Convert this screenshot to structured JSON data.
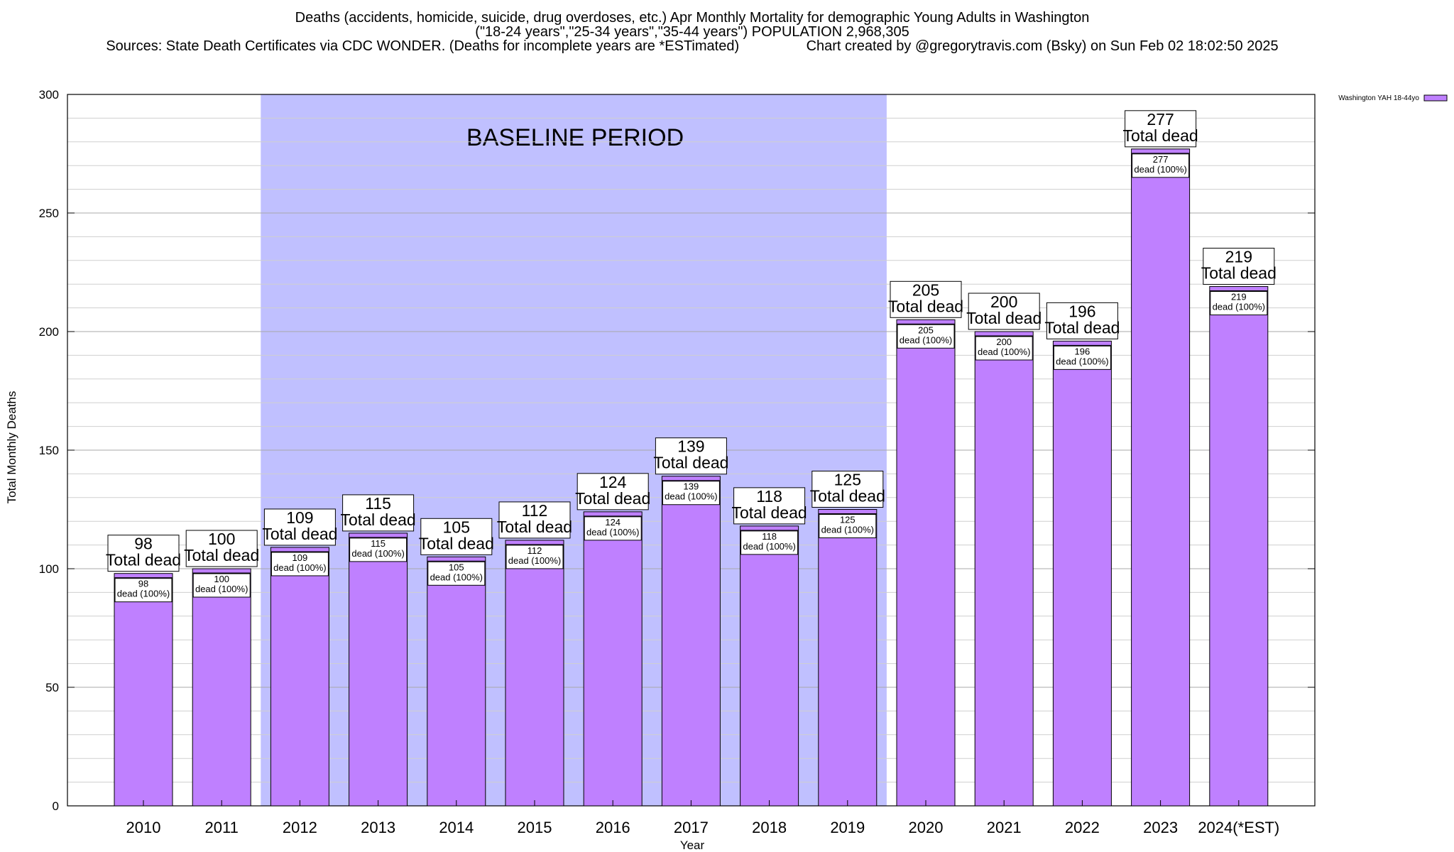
{
  "chart_data": {
    "type": "bar",
    "title_lines": [
      "Deaths (accidents, homicide, suicide, drug overdoses, etc.) Apr Monthly Mortality for demographic Young Adults in Washington",
      "(\"18-24 years\",\"25-34 years\",\"35-44 years\") POPULATION 2,968,305",
      "Sources: State Death Certificates via CDC WONDER. (Deaths for incomplete years are *ESTimated)                 Chart created by @gregorytravis.com (Bsky) on Sun Feb 02 18:02:50 2025"
    ],
    "xlabel": "Year",
    "ylabel": "Total Monthly Deaths",
    "ylim": [
      0,
      300
    ],
    "yticks": [
      0,
      50,
      100,
      150,
      200,
      250,
      300
    ],
    "grid": true,
    "categories": [
      "2010",
      "2011",
      "2012",
      "2013",
      "2014",
      "2015",
      "2016",
      "2017",
      "2018",
      "2019",
      "2020",
      "2021",
      "2022",
      "2023",
      "2024(*EST)"
    ],
    "series": [
      {
        "name": "Washington YAH 18-44yo",
        "color": "#bf80ff",
        "values": [
          98,
          100,
          109,
          115,
          105,
          112,
          124,
          139,
          118,
          125,
          205,
          200,
          196,
          277,
          219
        ]
      }
    ],
    "bar_label_suffix": "Total dead",
    "segment_label_suffix": "dead (100%)",
    "baseline_band": {
      "label": "BASELINE PERIOD",
      "from_category": "2012",
      "to_category": "2019",
      "color": "#c0c0ff"
    },
    "legend_position": "top-right"
  }
}
